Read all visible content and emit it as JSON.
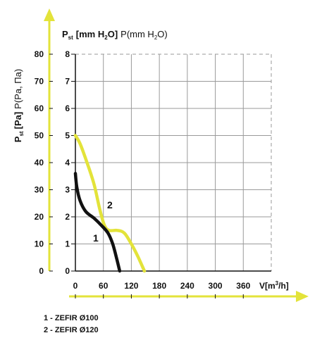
{
  "chart_data": {
    "type": "line",
    "yaxis_left": {
      "label_main": "P",
      "label_sub": "st",
      "label_unit": "[Pa]",
      "label_extra": "P(Pa, Па)",
      "ticks": [
        0,
        10,
        20,
        30,
        40,
        50,
        60,
        70,
        80
      ],
      "range": [
        0,
        80
      ]
    },
    "yaxis_right": {
      "label_main": "P",
      "label_sub": "st",
      "label_unit": "[mm H",
      "label_unit_sub": "2",
      "label_unit_end": "O]",
      "label_extra_pre": "P(mm H",
      "label_extra_sub": "2",
      "label_extra_end": "O)",
      "ticks": [
        0,
        1,
        2,
        3,
        4,
        5,
        6,
        7,
        8
      ],
      "range": [
        0,
        8
      ]
    },
    "xaxis": {
      "label_pre": "V[m",
      "label_sup": "3",
      "label_end": "/h]",
      "ticks": [
        0,
        60,
        120,
        180,
        240,
        300,
        360
      ],
      "range": [
        0,
        420
      ]
    },
    "grid": true,
    "series": [
      {
        "name": "1 - ZEFIR Ø100",
        "curve_label": "1",
        "color": "#111111",
        "points": [
          [
            0,
            36
          ],
          [
            3,
            31
          ],
          [
            10,
            26
          ],
          [
            22,
            22
          ],
          [
            40,
            19.5
          ],
          [
            55,
            17
          ],
          [
            70,
            14
          ],
          [
            80,
            10
          ],
          [
            88,
            5
          ],
          [
            95,
            0
          ]
        ]
      },
      {
        "name": "2 - ZEFIR Ø120",
        "curve_label": "2",
        "color": "#e3e33a",
        "points": [
          [
            0,
            50
          ],
          [
            10,
            47
          ],
          [
            25,
            40
          ],
          [
            40,
            32
          ],
          [
            52,
            23
          ],
          [
            62,
            17
          ],
          [
            72,
            15
          ],
          [
            90,
            15
          ],
          [
            105,
            14
          ],
          [
            120,
            10
          ],
          [
            135,
            5
          ],
          [
            148,
            0
          ]
        ]
      }
    ]
  },
  "legend": {
    "items": [
      "1 - ZEFIR Ø100",
      "2 - ZEFIR Ø120"
    ]
  },
  "colors": {
    "accent_arrow": "#e3e33a",
    "grid": "#9a9a9a",
    "axis": "#111111"
  }
}
